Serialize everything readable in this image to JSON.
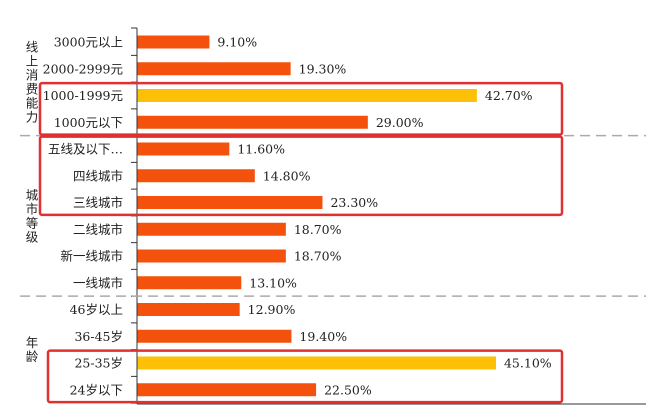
{
  "chart_data": {
    "type": "bar",
    "orientation": "horizontal",
    "xlabel": "",
    "ylabel": "",
    "xlim": [
      0,
      50
    ],
    "groups": [
      {
        "name": "线上消费能力",
        "categories": [
          "3000元以上",
          "2000-2999元",
          "1000-1999元",
          "1000元以下"
        ],
        "values": [
          9.1,
          19.3,
          42.7,
          29.0
        ],
        "highlight": [
          false,
          false,
          true,
          false
        ]
      },
      {
        "name": "城市等级",
        "categories": [
          "五线及以下…",
          "四线城市",
          "三线城市",
          "二线城市",
          "新一线城市",
          "一线城市"
        ],
        "values": [
          11.6,
          14.8,
          23.3,
          18.7,
          18.7,
          13.1
        ],
        "highlight": [
          false,
          false,
          false,
          false,
          false,
          false
        ]
      },
      {
        "name": "年龄",
        "categories": [
          "46岁以上",
          "36-45岁",
          "25-35岁",
          "24岁以下"
        ],
        "values": [
          12.9,
          19.4,
          45.1,
          22.5
        ],
        "highlight": [
          false,
          false,
          true,
          false
        ]
      }
    ],
    "value_format": "%",
    "colors": {
      "bar": "#F4520C",
      "highlight_bar": "#FDC007",
      "box": "#E03030",
      "divider": "#AAAAAA"
    }
  }
}
